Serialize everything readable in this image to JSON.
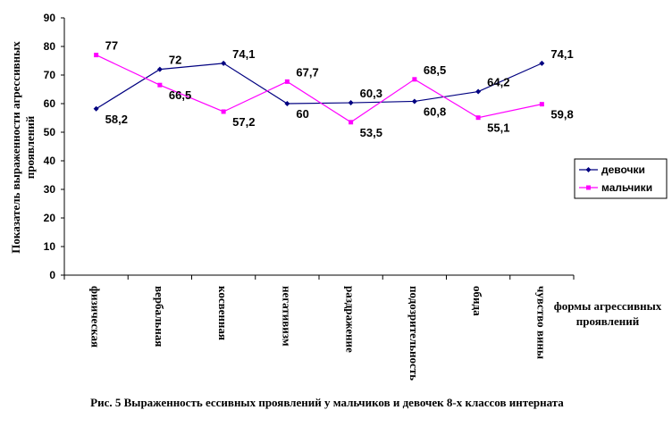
{
  "chart_data": {
    "type": "line",
    "categories": [
      "физическая",
      "вербальная",
      "косвенная",
      "негативизм",
      "раздражение",
      "подозрительность",
      "обида",
      "чувство вины"
    ],
    "series": [
      {
        "name": "девочки",
        "values": [
          58.2,
          72,
          74.1,
          60,
          60.3,
          60.8,
          64.2,
          74.1
        ],
        "color": "#000080",
        "marker": "diamond",
        "labels": [
          "58,2",
          "72",
          "74,1",
          "60",
          "60,3",
          "60,8",
          "64,2",
          "74,1"
        ]
      },
      {
        "name": "мальчики",
        "values": [
          77,
          66.5,
          57.2,
          67.7,
          53.5,
          68.5,
          55.1,
          59.8
        ],
        "color": "#ff00ff",
        "marker": "square",
        "labels": [
          "77",
          "66,5",
          "57,2",
          "67,7",
          "53,5",
          "68,5",
          "55,1",
          "59,8"
        ]
      }
    ],
    "ylabel": "Показатель выраженности агрессивных проявлений",
    "xlabel": "формы агрессивных проявлений",
    "ylim": [
      0,
      90
    ],
    "yticks": [
      0,
      10,
      20,
      30,
      40,
      50,
      60,
      70,
      80,
      90
    ],
    "grid": false,
    "legend_position": "right"
  },
  "caption": "Рис. 5 Выраженность ессивных проявлений у мальчиков и девочек 8-х классов интерната"
}
